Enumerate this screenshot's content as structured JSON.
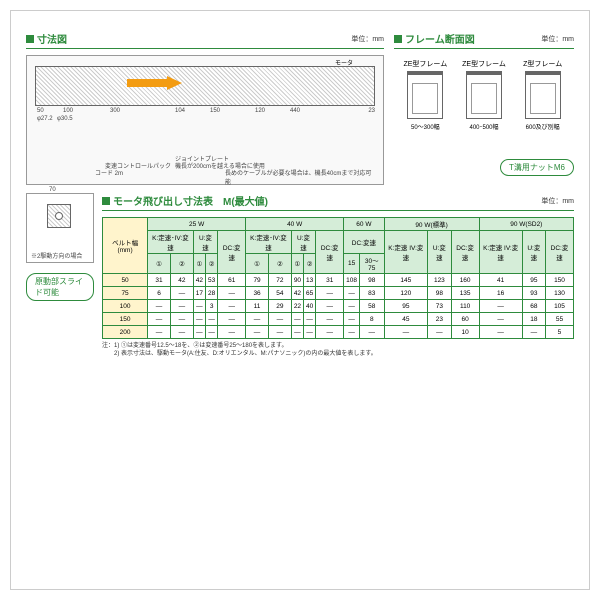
{
  "sections": {
    "dim": {
      "title": "寸法図",
      "unit": "単位：mm"
    },
    "cross": {
      "title": "フレーム断面図",
      "unit": "単位：mm"
    },
    "motor": {
      "title": "モータ飛び出し寸法表　M(最大値)",
      "unit": "単位：mm"
    }
  },
  "arrow": {
    "color": "#f39c12"
  },
  "dims": {
    "d1": "φ27.2",
    "d2": "φ30.5",
    "l1": "50",
    "l2": "100",
    "l3": "300",
    "l4": "104",
    "l5": "150",
    "l6": "120",
    "l7": "440",
    "l8": "23",
    "h1": "150",
    "h2": "49",
    "motor": "モータ",
    "drive": "駆動 S",
    "note1": "ジョイントプレート",
    "note2": "機長が200cmを越える場合に使用",
    "note3": "変速コントロールパック",
    "note4": "コード 2m",
    "note5": "長めのケーブルが必要な場合は、機長40cmまで対応可能"
  },
  "cross_sections": [
    {
      "label": "ZE型フレーム",
      "width": "50～300幅",
      "h": "34",
      "w": "40",
      "nut": "4Nナット"
    },
    {
      "label": "ZE型フレーム",
      "width": "400･500幅",
      "h": "34",
      "w": "40",
      "nut": "4Nナット"
    },
    {
      "label": "Z型フレーム",
      "width": "600及び別幅",
      "h": "34",
      "w": "40",
      "nut": "2Nナット"
    }
  ],
  "pill_label": "T溝用ナットM6",
  "drive_note": "原動部スライド可能",
  "small_drawing": {
    "w": "70",
    "h": "10",
    "note": "※2駆動方向の場合"
  },
  "table": {
    "belt_header": "ベルト幅\n(mm)",
    "power_groups": [
      "25 W",
      "40 W",
      "60 W",
      "90 W(標準)",
      "90 W(SD2)"
    ],
    "sub_headers_25": [
      "K:定速･IV:変速",
      "U:変速",
      "DC:変速"
    ],
    "sub_headers_40": [
      "K:定速･IV:変速",
      "U:変速",
      "DC:変速"
    ],
    "sub_headers_60": [
      "DC:変速"
    ],
    "sub_headers_90": [
      "K:定速\nIV:変速",
      "U:変速",
      "DC:変速"
    ],
    "circles": [
      "①",
      "②",
      "①",
      "②",
      "①",
      "②",
      "①",
      "②",
      "15",
      "30～75"
    ],
    "rows": [
      {
        "belt": "50",
        "v": [
          "31",
          "42",
          "42",
          "53",
          "61",
          "79",
          "72",
          "90",
          "13",
          "31",
          "108",
          "98",
          "145",
          "123",
          "160",
          "41",
          "95",
          "150",
          "38"
        ]
      },
      {
        "belt": "75",
        "v": [
          "6",
          "—",
          "17",
          "28",
          "—",
          "36",
          "54",
          "42",
          "65",
          "—",
          "—",
          "83",
          "120",
          "98",
          "135",
          "16",
          "93",
          "130",
          "11"
        ]
      },
      {
        "belt": "100",
        "v": [
          "—",
          "—",
          "—",
          "3",
          "—",
          "11",
          "29",
          "22",
          "40",
          "—",
          "—",
          "58",
          "95",
          "73",
          "110",
          "—",
          "68",
          "105",
          "—"
        ]
      },
      {
        "belt": "150",
        "v": [
          "—",
          "—",
          "—",
          "—",
          "—",
          "—",
          "—",
          "—",
          "—",
          "—",
          "—",
          "8",
          "45",
          "23",
          "60",
          "—",
          "18",
          "55",
          "—"
        ]
      },
      {
        "belt": "200",
        "v": [
          "—",
          "—",
          "—",
          "—",
          "—",
          "—",
          "—",
          "—",
          "—",
          "—",
          "—",
          "—",
          "—",
          "—",
          "10",
          "—",
          "—",
          "5",
          "—"
        ]
      }
    ]
  },
  "notes": [
    "注：1) ①は変速番号12.5～18を、②は変速番号25～180を表します。",
    "　　2) 表示寸法は、駆動モータ(A:住友、D:オリエンタル、M:パナソニック)の内の最大値を表します。"
  ]
}
